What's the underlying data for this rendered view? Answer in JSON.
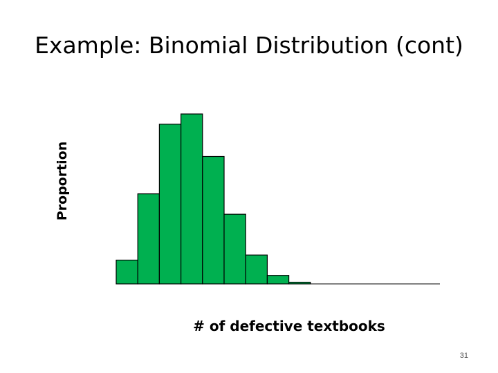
{
  "slide": {
    "title": "Example: Binomial Distribution (cont)",
    "page_number": "31"
  },
  "chart_data": {
    "type": "bar",
    "title": "Example: Binomial Distribution (cont)",
    "xlabel": "# of defective textbooks",
    "ylabel": "Proportion",
    "values": [
      0.14,
      0.53,
      0.94,
      1.0,
      0.75,
      0.41,
      0.17,
      0.05,
      0.01
    ],
    "ylim": [
      0,
      1
    ],
    "grid": false,
    "bar_color": "#00b050",
    "edge_color": "#000000"
  }
}
